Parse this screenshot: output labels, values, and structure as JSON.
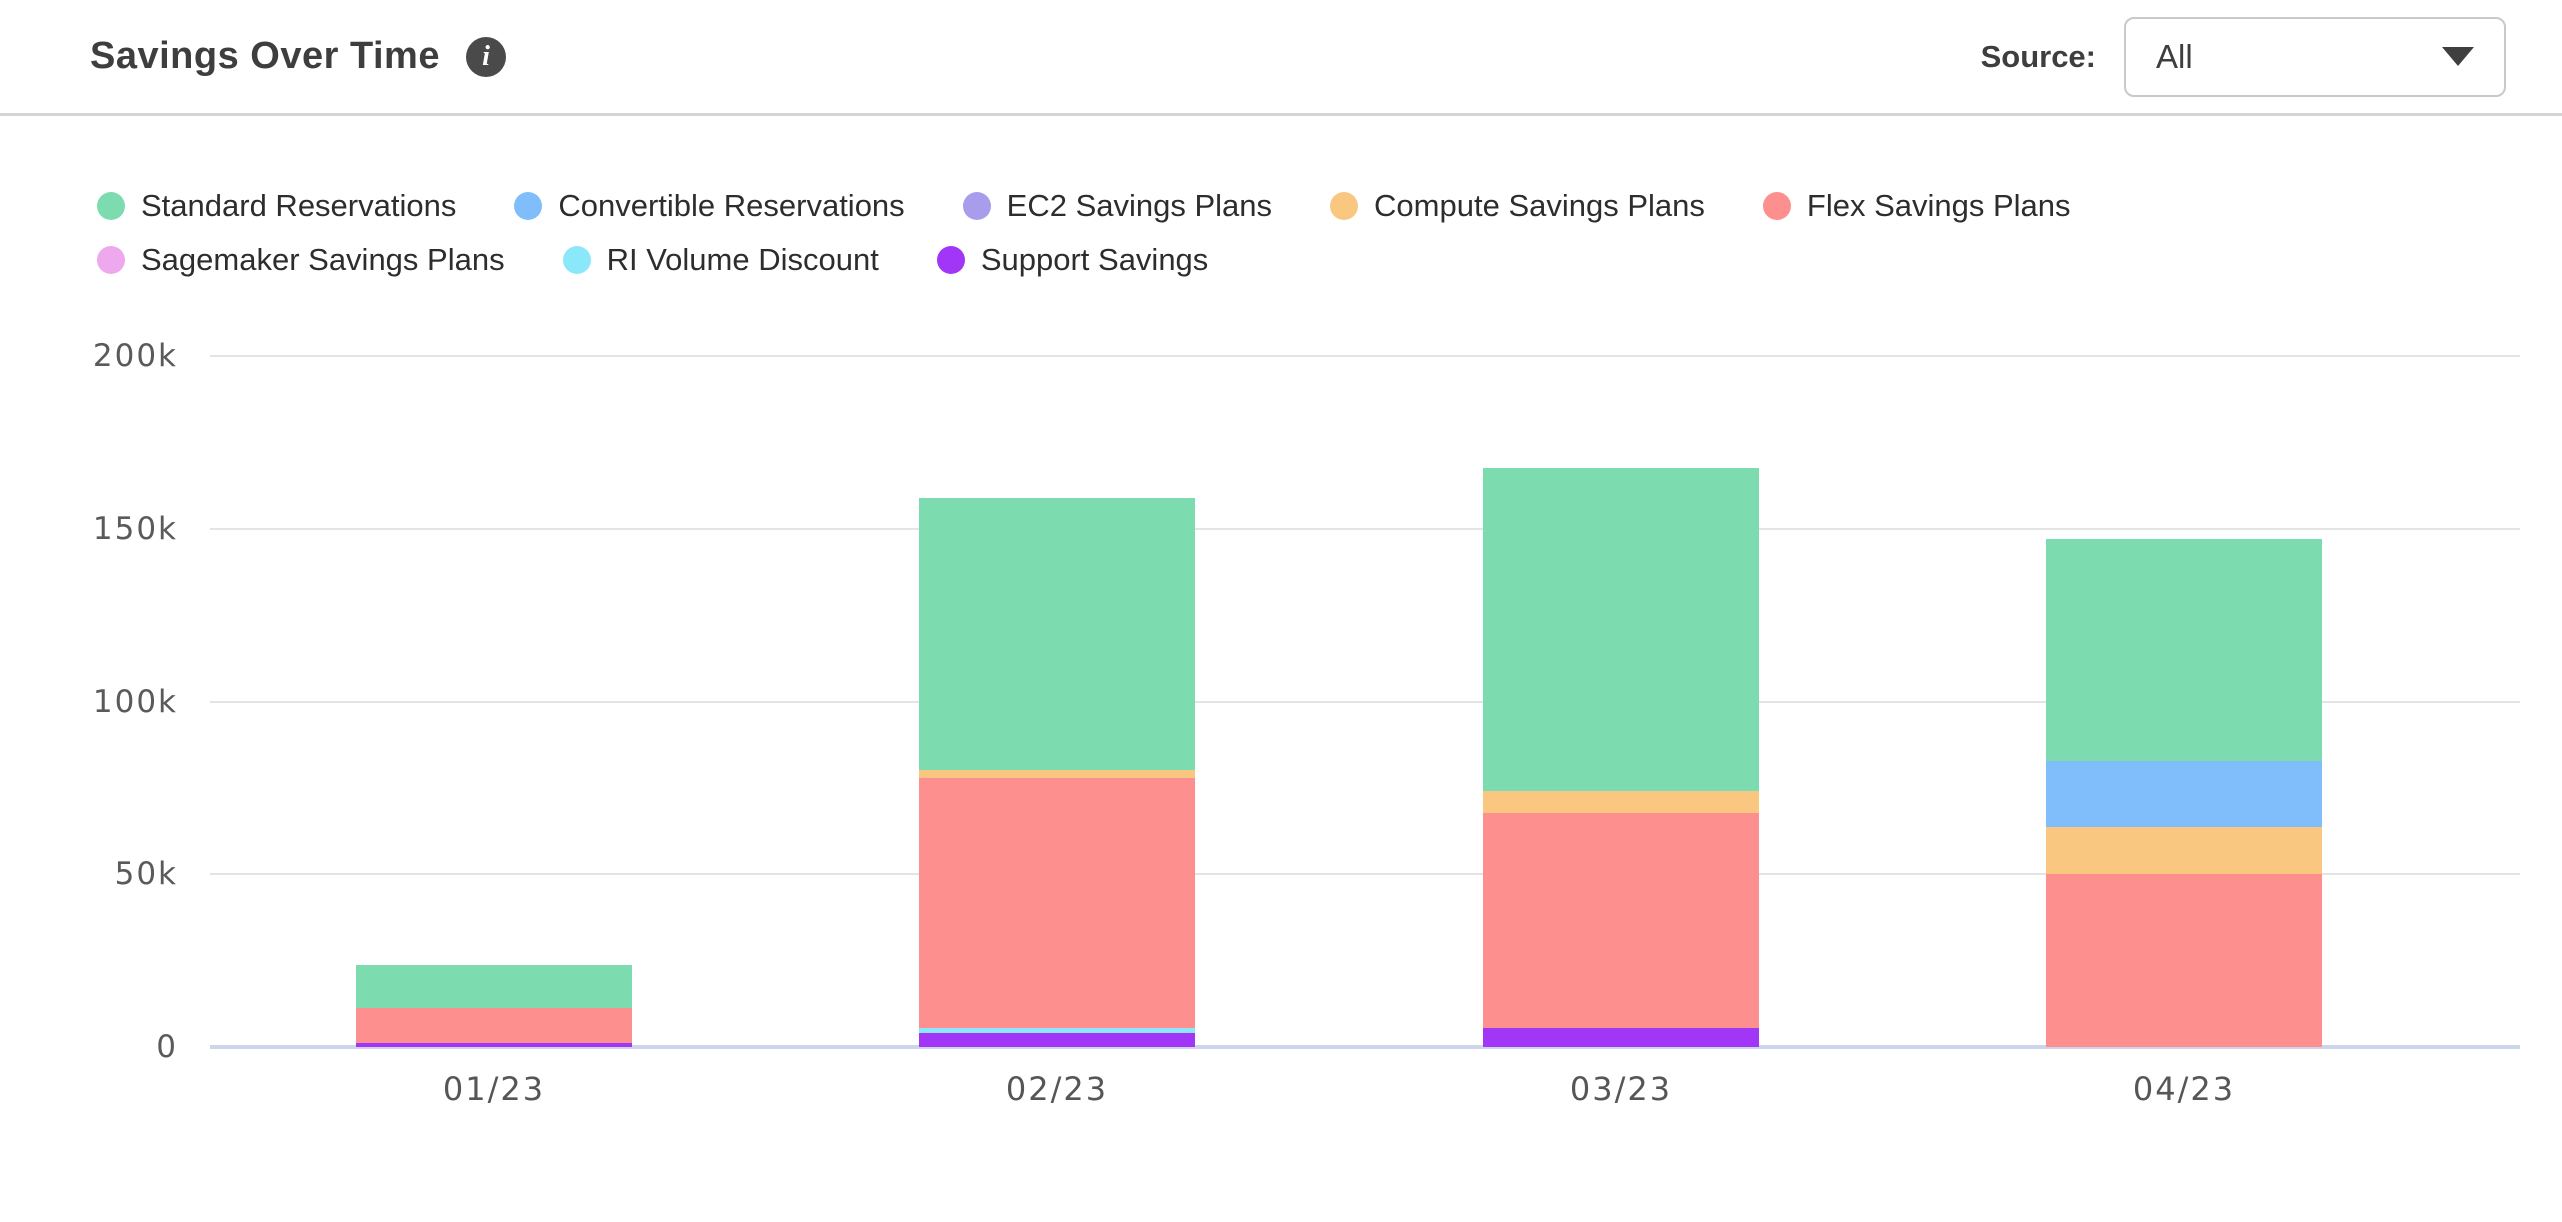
{
  "header": {
    "title": "Savings Over Time",
    "source_label": "Source:",
    "source_value": "All"
  },
  "legend": [
    {
      "label": "Standard Reservations",
      "color": "#7cdcb0"
    },
    {
      "label": "Convertible Reservations",
      "color": "#7fbefb"
    },
    {
      "label": "EC2 Savings Plans",
      "color": "#a89cec"
    },
    {
      "label": "Compute Savings Plans",
      "color": "#f9c77f"
    },
    {
      "label": "Flex Savings Plans",
      "color": "#fe8f8f"
    },
    {
      "label": "Sagemaker Savings Plans",
      "color": "#eea8ee"
    },
    {
      "label": "RI Volume Discount",
      "color": "#8be7fa"
    },
    {
      "label": "Support Savings",
      "color": "#a136f7"
    }
  ],
  "chart_data": {
    "type": "bar",
    "stacked": true,
    "title": "Savings Over Time",
    "categories": [
      "01/23",
      "02/23",
      "03/23",
      "04/23"
    ],
    "value_unit": "thousands (k)",
    "series": [
      {
        "name": "Support Savings",
        "color": "#a136f7",
        "values": [
          1.3,
          4.2,
          5.4,
          0
        ]
      },
      {
        "name": "RI Volume Discount",
        "color": "#8be7fa",
        "values": [
          0,
          1.2,
          0,
          0
        ]
      },
      {
        "name": "Sagemaker Savings Plans",
        "color": "#eea8ee",
        "values": [
          0,
          0,
          0,
          0
        ]
      },
      {
        "name": "Flex Savings Plans",
        "color": "#fe8f8f",
        "values": [
          9.9,
          72.5,
          62.2,
          50.0
        ]
      },
      {
        "name": "Compute Savings Plans",
        "color": "#f9c77f",
        "values": [
          0,
          2.2,
          6.5,
          13.6
        ]
      },
      {
        "name": "EC2 Savings Plans",
        "color": "#a89cec",
        "values": [
          0,
          0,
          0,
          0
        ]
      },
      {
        "name": "Convertible Reservations",
        "color": "#7fbefb",
        "values": [
          0,
          0,
          0,
          19.3
        ]
      },
      {
        "name": "Standard Reservations",
        "color": "#7cdcb0",
        "values": [
          12.4,
          78.7,
          93.4,
          64.2
        ]
      }
    ],
    "totals": [
      23.6,
      158.8,
      167.5,
      147.1
    ],
    "stack_order": "bottom-to-top as listed in series",
    "y_ticks": [
      "200k",
      "150k",
      "100k",
      "50k",
      "0"
    ],
    "y_tick_values": [
      200,
      150,
      100,
      50,
      0
    ],
    "ylim": [
      0,
      200
    ],
    "xlabel": "",
    "ylabel": "",
    "grid": true,
    "legend_position": "top"
  }
}
